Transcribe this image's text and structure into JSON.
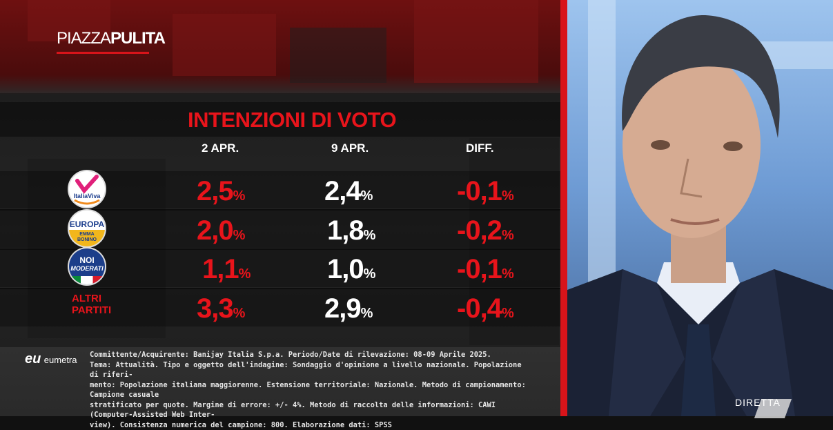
{
  "show_logo": {
    "part1": "PIAZZA",
    "part2": "PULITA"
  },
  "poll": {
    "title": "INTENZIONI DI VOTO",
    "columns": [
      "2 APR.",
      "9 APR.",
      "DIFF."
    ],
    "rows": [
      {
        "party": "Italia Viva",
        "logo_text": "ItaliaViva",
        "v1": "2,5",
        "v2": "2,4",
        "diff": "-0,1"
      },
      {
        "party": "Europa + Emma Bonino",
        "logo_text_top": "EUROPA",
        "logo_text_bottom": "EMMA BONINO",
        "v1": "2,0",
        "v2": "1,8",
        "diff": "-0,2"
      },
      {
        "party": "Noi Moderati",
        "logo_text_top": "NOI",
        "logo_text_bottom": "MODERATI",
        "v1": "1,1",
        "v2": "1,0",
        "diff": "-0,1"
      },
      {
        "party": "Altri partiti",
        "label_line1": "ALTRI",
        "label_line2": "PARTITI",
        "v1": "3,3",
        "v2": "2,9",
        "diff": "-0,4"
      }
    ],
    "unit": "%"
  },
  "source": {
    "logo_mark": "eu",
    "name": "eumetra",
    "line1": "Committente/Acquirente: Banijay Italia S.p.a. Periodo/Date di rilevazione: 08-09 Aprile 2025.",
    "line2": "Tema: Attualità. Tipo e oggetto dell'indagine: Sondaggio d'opinione a livello nazionale. Popolazione di riferi-",
    "line3": "mento: Popolazione italiana maggiorenne. Estensione territoriale: Nazionale. Metodo di campionamento: Campione casuale",
    "line4": "stratificato per quote. Margine di errore: +/- 4%. Metodo di raccolta delle informazioni: CAWI (Computer-Assisted Web Inter-",
    "line5": "view). Consistenza numerica del campione: 800. Elaborazione dati: SPSS"
  },
  "live_badge": "DIRETTA",
  "colors": {
    "accent_red": "#e8141b",
    "divider_red": "#d8141a"
  }
}
